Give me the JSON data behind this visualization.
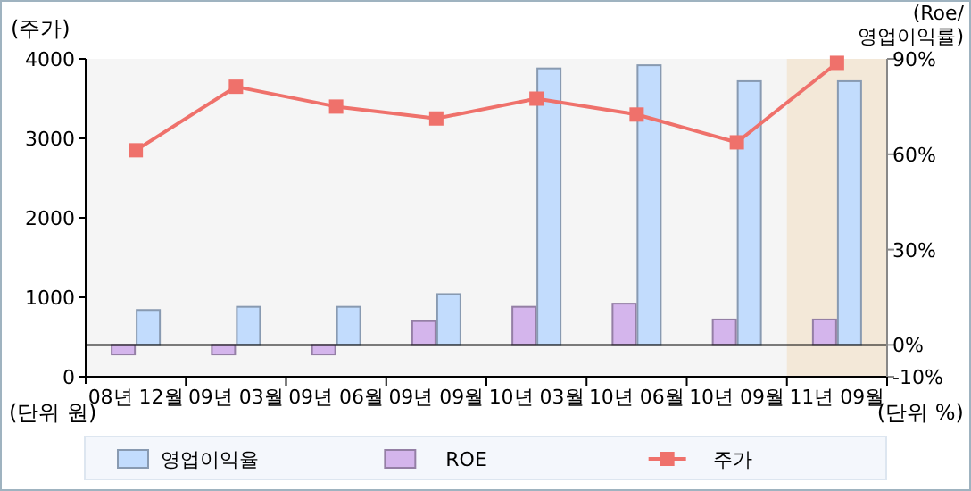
{
  "chart_data": {
    "type": "bar",
    "ylabel": "(주가)",
    "y2label": "(Roe/ 영업이익률)",
    "categories": [
      "08년 12월",
      "09년 03월",
      "09년 06월",
      "09년 09월",
      "10년 03월",
      "10년 06월",
      "10년 09월",
      "11년 09월"
    ],
    "series": [
      {
        "name": "영업이익율",
        "axis": "y2",
        "color": "#c2dcfd",
        "values": [
          11,
          12,
          12,
          16,
          87,
          88,
          83,
          83
        ]
      },
      {
        "name": "ROE",
        "axis": "y2",
        "color": "#d4b5ec",
        "values": [
          -3,
          -3,
          -3,
          7.5,
          12,
          13,
          8,
          8
        ]
      },
      {
        "name": "주가",
        "type": "line",
        "axis": "y",
        "color": "#ef716b",
        "marker": "square",
        "values": [
          2850,
          3650,
          3400,
          3250,
          3500,
          3300,
          2950,
          3950
        ]
      }
    ],
    "ylim": [
      0,
      4000
    ],
    "yticks": [
      0,
      1000,
      2000,
      3000,
      4000
    ],
    "y2lim": [
      -10,
      90
    ],
    "y2ticks": [
      {
        "value": 90,
        "label": "90%"
      },
      {
        "value": 60,
        "label": "60%"
      },
      {
        "value": 30,
        "label": "30%"
      },
      {
        "value": 0,
        "label": "0%"
      },
      {
        "value": -10,
        "label": "-10%"
      }
    ],
    "bands": [
      {
        "axis": "x",
        "from": "11년 09월",
        "to": "11년 09월",
        "color": "#f3e8d8"
      }
    ],
    "ref_lines": [
      {
        "axis": "y2",
        "value": 0,
        "color": "#000000"
      }
    ],
    "annotations": [
      "(단위 원)",
      "(단위 %)"
    ],
    "legend": "bottom",
    "grid": false
  }
}
